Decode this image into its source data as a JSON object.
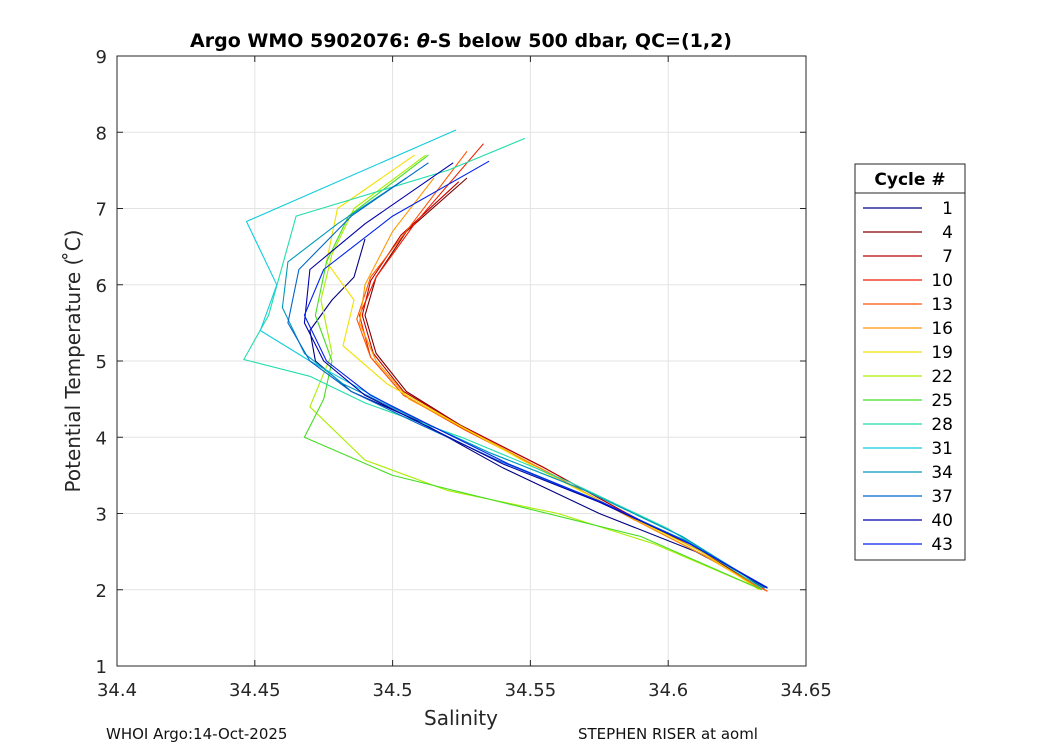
{
  "chart_data": {
    "type": "line",
    "title": "Argo WMO 5902076: θ-S below 500 dbar,  QC=(1,2)",
    "title_prefix": "Argo WMO 5902076: ",
    "title_theta": "θ",
    "title_suffix": "-S below 500 dbar,  QC=(1,2)",
    "xlabel": "Salinity",
    "ylabel": "Potential Temperature ( ̊C)",
    "xlim": [
      34.4,
      34.65
    ],
    "ylim": [
      1,
      9
    ],
    "x_ticks": [
      34.4,
      34.45,
      34.5,
      34.55,
      34.6,
      34.65
    ],
    "x_tick_labels": [
      "34.4",
      "34.45",
      "34.5",
      "34.55",
      "34.6",
      "34.65"
    ],
    "y_ticks": [
      1,
      2,
      3,
      4,
      5,
      6,
      7,
      8,
      9
    ],
    "y_tick_labels": [
      "1",
      "2",
      "3",
      "4",
      "5",
      "6",
      "7",
      "8",
      "9"
    ],
    "grid": true,
    "legend": {
      "title": "Cycle #",
      "placement": "right-outside",
      "entries": [
        {
          "label": "1",
          "color": "#000080"
        },
        {
          "label": "4",
          "color": "#800000"
        },
        {
          "label": "7",
          "color": "#bb0000"
        },
        {
          "label": "10",
          "color": "#ee1a00"
        },
        {
          "label": "13",
          "color": "#ff5500"
        },
        {
          "label": "16",
          "color": "#ff9900"
        },
        {
          "label": "19",
          "color": "#f2e000"
        },
        {
          "label": "22",
          "color": "#aaee00"
        },
        {
          "label": "25",
          "color": "#44dd22"
        },
        {
          "label": "28",
          "color": "#22ddaa"
        },
        {
          "label": "31",
          "color": "#11ccdd"
        },
        {
          "label": "34",
          "color": "#0099bb"
        },
        {
          "label": "37",
          "color": "#0066cc"
        },
        {
          "label": "40",
          "color": "#0000aa"
        },
        {
          "label": "43",
          "color": "#0022ee"
        }
      ]
    },
    "series": [
      {
        "name": "1",
        "color": "#000080",
        "s": [
          34.49,
          34.486,
          34.478,
          34.47,
          34.472,
          34.485,
          34.51,
          34.54,
          34.575,
          34.61,
          34.635
        ],
        "t": [
          6.6,
          6.1,
          5.8,
          5.4,
          5.0,
          4.6,
          4.2,
          3.6,
          3.0,
          2.5,
          2.02
        ]
      },
      {
        "name": "4",
        "color": "#800000",
        "s": [
          34.527,
          34.505,
          34.494,
          34.49,
          34.494,
          34.505,
          34.525,
          34.555,
          34.585,
          34.612,
          34.635
        ],
        "t": [
          7.4,
          6.7,
          6.1,
          5.6,
          5.1,
          4.6,
          4.15,
          3.6,
          3.0,
          2.5,
          2.0
        ]
      },
      {
        "name": "7",
        "color": "#bb0000",
        "s": [
          34.524,
          34.503,
          34.492,
          34.489,
          34.493,
          34.504,
          34.525,
          34.555,
          34.585,
          34.612,
          34.634
        ],
        "t": [
          7.35,
          6.65,
          6.05,
          5.6,
          5.1,
          4.6,
          4.15,
          3.6,
          3.0,
          2.5,
          2.0
        ]
      },
      {
        "name": "10",
        "color": "#ee1a00",
        "s": [
          34.533,
          34.508,
          34.494,
          34.488,
          34.492,
          34.504,
          34.526,
          34.556,
          34.586,
          34.613,
          34.636
        ],
        "t": [
          7.85,
          6.8,
          6.1,
          5.6,
          5.05,
          4.55,
          4.1,
          3.55,
          2.95,
          2.45,
          1.98
        ]
      },
      {
        "name": "13",
        "color": "#ff5500",
        "s": [
          34.527,
          34.506,
          34.492,
          34.487,
          34.492,
          34.504,
          34.526,
          34.556,
          34.586,
          34.613,
          34.636
        ],
        "t": [
          7.75,
          6.75,
          6.1,
          5.55,
          5.05,
          4.55,
          4.1,
          3.55,
          2.95,
          2.45,
          1.98
        ]
      },
      {
        "name": "16",
        "color": "#ff9900",
        "s": [
          34.515,
          34.5,
          34.49,
          34.488,
          34.494,
          34.506,
          34.527,
          34.556,
          34.586,
          34.613,
          34.634
        ],
        "t": [
          7.4,
          6.7,
          6.0,
          5.5,
          5.0,
          4.5,
          4.1,
          3.55,
          2.95,
          2.45,
          2.0
        ]
      },
      {
        "name": "19",
        "color": "#f2e000",
        "s": [
          34.508,
          34.48,
          34.476,
          34.486,
          34.482,
          34.498,
          34.522,
          34.552,
          34.584,
          34.612,
          34.633
        ],
        "t": [
          7.7,
          7.0,
          6.3,
          5.8,
          5.2,
          4.7,
          4.2,
          3.6,
          3.0,
          2.5,
          2.0
        ]
      },
      {
        "name": "22",
        "color": "#aaee00",
        "s": [
          34.512,
          34.486,
          34.478,
          34.474,
          34.478,
          34.47,
          34.49,
          34.52,
          34.56,
          34.595,
          34.634
        ],
        "t": [
          7.7,
          7.0,
          6.4,
          5.8,
          5.1,
          4.4,
          3.7,
          3.3,
          3.0,
          2.6,
          2.0
        ]
      },
      {
        "name": "25",
        "color": "#44dd22",
        "s": [
          34.513,
          34.484,
          34.476,
          34.472,
          34.478,
          34.475,
          34.468,
          34.5,
          34.545,
          34.59,
          34.634
        ],
        "t": [
          7.7,
          6.9,
          6.3,
          5.6,
          5.0,
          4.5,
          4.0,
          3.5,
          3.1,
          2.7,
          2.0
        ]
      },
      {
        "name": "28",
        "color": "#22ddaa",
        "s": [
          34.548,
          34.52,
          34.465,
          34.455,
          34.446,
          34.47,
          34.49,
          34.525,
          34.565,
          34.6,
          34.634
        ],
        "t": [
          7.92,
          7.5,
          6.9,
          5.6,
          5.02,
          4.8,
          4.45,
          4.0,
          3.4,
          2.8,
          2.02
        ]
      },
      {
        "name": "31",
        "color": "#11ccdd",
        "s": [
          34.523,
          34.447,
          34.458,
          34.452,
          34.47,
          34.485,
          34.505,
          34.535,
          34.57,
          34.605,
          34.635
        ],
        "t": [
          8.03,
          6.83,
          6.0,
          5.4,
          5.0,
          4.7,
          4.3,
          3.8,
          3.3,
          2.7,
          2.03
        ]
      },
      {
        "name": "34",
        "color": "#0099bb",
        "s": [
          34.505,
          34.48,
          34.462,
          34.46,
          34.468,
          34.482,
          34.505,
          34.535,
          34.57,
          34.605,
          34.635
        ],
        "t": [
          7.4,
          6.8,
          6.3,
          5.7,
          5.1,
          4.7,
          4.3,
          3.8,
          3.3,
          2.7,
          2.02
        ]
      },
      {
        "name": "37",
        "color": "#0066cc",
        "s": [
          34.513,
          34.485,
          34.466,
          34.462,
          34.47,
          34.485,
          34.508,
          34.538,
          34.572,
          34.606,
          34.636
        ],
        "t": [
          7.6,
          6.9,
          6.2,
          5.5,
          5.0,
          4.6,
          4.2,
          3.7,
          3.2,
          2.65,
          2.02
        ]
      },
      {
        "name": "40",
        "color": "#0000aa",
        "s": [
          34.522,
          34.49,
          34.47,
          34.468,
          34.475,
          34.49,
          34.512,
          34.54,
          34.575,
          34.608,
          34.636
        ],
        "t": [
          7.6,
          6.8,
          6.2,
          5.5,
          5.0,
          4.55,
          4.15,
          3.65,
          3.15,
          2.6,
          2.02
        ]
      },
      {
        "name": "43",
        "color": "#0022ee",
        "s": [
          34.535,
          34.5,
          34.475,
          34.468,
          34.476,
          34.492,
          34.514,
          34.542,
          34.576,
          34.608,
          34.636
        ],
        "t": [
          7.62,
          6.9,
          6.2,
          5.6,
          5.0,
          4.55,
          4.15,
          3.65,
          3.15,
          2.6,
          2.03
        ]
      }
    ]
  },
  "footer": {
    "left": "WHOI Argo:14-Oct-2025",
    "right": "STEPHEN RISER at aoml"
  }
}
